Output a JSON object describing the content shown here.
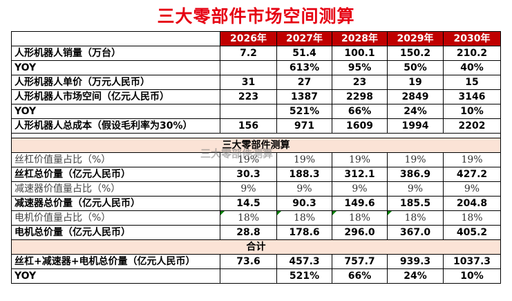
{
  "title": "三大零部件市场空间测算",
  "years": [
    "2026年",
    "2027年",
    "2028年",
    "2029年",
    "2030年"
  ],
  "section1_rows": [
    {
      "label": "人形机器人销量（万台）",
      "values": [
        "7.2",
        "51.4",
        "100.1",
        "150.2",
        "210.2"
      ]
    },
    {
      "label": "YOY",
      "values": [
        "",
        "613%",
        "95%",
        "50%",
        "40%"
      ]
    },
    {
      "label": "人形机器人单价（万元人民币）",
      "values": [
        "31",
        "27",
        "23",
        "19",
        "15"
      ]
    },
    {
      "label": "人形机器人市场空间（亿元人民币）",
      "values": [
        "223",
        "1387",
        "2298",
        "2849",
        "3146"
      ]
    },
    {
      "label": "YOY",
      "values": [
        "",
        "521%",
        "66%",
        "24%",
        "10%"
      ]
    },
    {
      "label": "人形机器人总成本（假设毛利率为30%）",
      "values": [
        "156",
        "971",
        "1609",
        "1994",
        "2202"
      ]
    }
  ],
  "section2_title": "三大零部件测算",
  "section2_rows": [
    {
      "label": "丝杠价值量占比（%）",
      "values": [
        "19%",
        "19%",
        "19%",
        "19%",
        "19%"
      ],
      "style": "light",
      "flags": false
    },
    {
      "label": "丝杠总价量（亿元人民币）",
      "values": [
        "30.3",
        "188.3",
        "312.1",
        "386.9",
        "427.2"
      ],
      "style": "bold",
      "flags": false
    },
    {
      "label": "减速器价值量占比（%）",
      "values": [
        "9%",
        "9%",
        "9%",
        "9%",
        "9%"
      ],
      "style": "light",
      "flags": false
    },
    {
      "label": "减速器总价量（亿元人民币）",
      "values": [
        "14.5",
        "90.3",
        "149.6",
        "185.5",
        "204.8"
      ],
      "style": "bold",
      "flags": false
    },
    {
      "label": "电机价值量占比（%）",
      "values": [
        "18%",
        "18%",
        "18%",
        "18%",
        "18%"
      ],
      "style": "light",
      "flags": true
    },
    {
      "label": "电机总价量（亿元人民币）",
      "values": [
        "28.8",
        "178.6",
        "296.0",
        "367.0",
        "405.2"
      ],
      "style": "bold",
      "flags": false
    }
  ],
  "section3_title": "合计",
  "section3_rows": [
    {
      "label": "丝杠+减速器+电机总价量（亿元人民币）",
      "values": [
        "73.6",
        "457.3",
        "757.7",
        "939.3",
        "1037.3"
      ]
    },
    {
      "label": "YOY",
      "values": [
        "",
        "521%",
        "66%",
        "24%",
        "10%"
      ]
    }
  ],
  "watermark": "三大零部件测算",
  "colors": {
    "title": "#e60012",
    "header_bg": "#c00000",
    "section_bg": "#fbe3d6",
    "flag": "#008000"
  }
}
